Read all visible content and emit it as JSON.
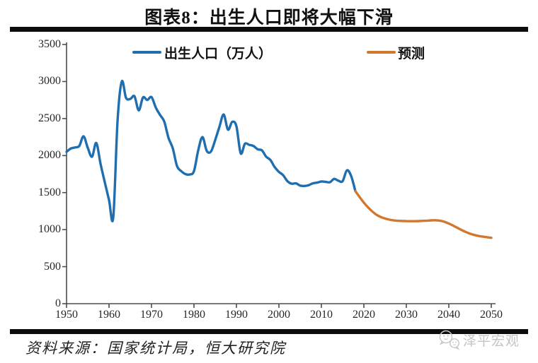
{
  "title": "图表8：出生人口即将大幅下滑",
  "legend": {
    "birth": "出生人口（万人）",
    "forecast": "预测"
  },
  "source": "资料来源：国家统计局，恒大研究院",
  "watermark": "泽平宏观",
  "colors": {
    "birth_line": "#1F6FB0",
    "forecast_line": "#D2772E",
    "axis": "#4d4d4d",
    "divider": "#0c0c0c",
    "watermark": "#c4c4c4"
  },
  "chart_data": {
    "type": "line",
    "title": "图表8：出生人口即将大幅下滑",
    "xlabel": "",
    "ylabel": "",
    "xlim": [
      1950,
      2051
    ],
    "ylim": [
      0,
      3500
    ],
    "x_ticks": [
      1950,
      1960,
      1970,
      1980,
      1990,
      2000,
      2010,
      2020,
      2030,
      2040,
      2050
    ],
    "y_ticks": [
      0,
      500,
      1000,
      1500,
      2000,
      2500,
      3000,
      3500
    ],
    "grid": false,
    "legend_position": "top",
    "series": [
      {
        "name": "出生人口（万人）",
        "color": "#1F6FB0",
        "points": [
          [
            1950,
            2050
          ],
          [
            1951,
            2095
          ],
          [
            1952,
            2110
          ],
          [
            1953,
            2130
          ],
          [
            1954,
            2260
          ],
          [
            1955,
            2105
          ],
          [
            1956,
            1985
          ],
          [
            1957,
            2170
          ],
          [
            1958,
            1890
          ],
          [
            1959,
            1640
          ],
          [
            1960,
            1400
          ],
          [
            1961,
            1165
          ],
          [
            1962,
            2460
          ],
          [
            1963,
            3000
          ],
          [
            1964,
            2780
          ],
          [
            1965,
            2765
          ],
          [
            1966,
            2800
          ],
          [
            1967,
            2610
          ],
          [
            1968,
            2785
          ],
          [
            1969,
            2750
          ],
          [
            1970,
            2790
          ],
          [
            1971,
            2650
          ],
          [
            1972,
            2550
          ],
          [
            1973,
            2460
          ],
          [
            1974,
            2240
          ],
          [
            1975,
            2100
          ],
          [
            1976,
            1860
          ],
          [
            1977,
            1790
          ],
          [
            1978,
            1750
          ],
          [
            1979,
            1745
          ],
          [
            1980,
            1790
          ],
          [
            1981,
            2070
          ],
          [
            1982,
            2250
          ],
          [
            1983,
            2065
          ],
          [
            1984,
            2055
          ],
          [
            1985,
            2210
          ],
          [
            1986,
            2390
          ],
          [
            1987,
            2555
          ],
          [
            1988,
            2350
          ],
          [
            1989,
            2455
          ],
          [
            1990,
            2395
          ],
          [
            1991,
            2030
          ],
          [
            1992,
            2160
          ],
          [
            1993,
            2145
          ],
          [
            1994,
            2130
          ],
          [
            1995,
            2085
          ],
          [
            1996,
            2070
          ],
          [
            1997,
            1985
          ],
          [
            1998,
            1940
          ],
          [
            1999,
            1845
          ],
          [
            2000,
            1780
          ],
          [
            2001,
            1735
          ],
          [
            2002,
            1655
          ],
          [
            2003,
            1620
          ],
          [
            2004,
            1625
          ],
          [
            2005,
            1595
          ],
          [
            2006,
            1590
          ],
          [
            2007,
            1600
          ],
          [
            2008,
            1625
          ],
          [
            2009,
            1635
          ],
          [
            2010,
            1650
          ],
          [
            2011,
            1645
          ],
          [
            2012,
            1640
          ],
          [
            2013,
            1685
          ],
          [
            2014,
            1660
          ],
          [
            2015,
            1655
          ],
          [
            2016,
            1800
          ],
          [
            2017,
            1725
          ],
          [
            2018,
            1520
          ]
        ]
      },
      {
        "name": "预测",
        "color": "#D2772E",
        "points": [
          [
            2018,
            1520
          ],
          [
            2019,
            1440
          ],
          [
            2020,
            1365
          ],
          [
            2021,
            1300
          ],
          [
            2022,
            1245
          ],
          [
            2023,
            1200
          ],
          [
            2024,
            1170
          ],
          [
            2025,
            1150
          ],
          [
            2026,
            1135
          ],
          [
            2027,
            1125
          ],
          [
            2028,
            1120
          ],
          [
            2029,
            1117
          ],
          [
            2030,
            1115
          ],
          [
            2031,
            1114
          ],
          [
            2032,
            1114
          ],
          [
            2033,
            1116
          ],
          [
            2034,
            1119
          ],
          [
            2035,
            1122
          ],
          [
            2036,
            1125
          ],
          [
            2037,
            1126
          ],
          [
            2038,
            1120
          ],
          [
            2039,
            1105
          ],
          [
            2040,
            1082
          ],
          [
            2041,
            1055
          ],
          [
            2042,
            1025
          ],
          [
            2043,
            995
          ],
          [
            2044,
            968
          ],
          [
            2045,
            945
          ],
          [
            2046,
            928
          ],
          [
            2047,
            915
          ],
          [
            2048,
            905
          ],
          [
            2049,
            897
          ],
          [
            2050,
            890
          ]
        ]
      }
    ]
  }
}
